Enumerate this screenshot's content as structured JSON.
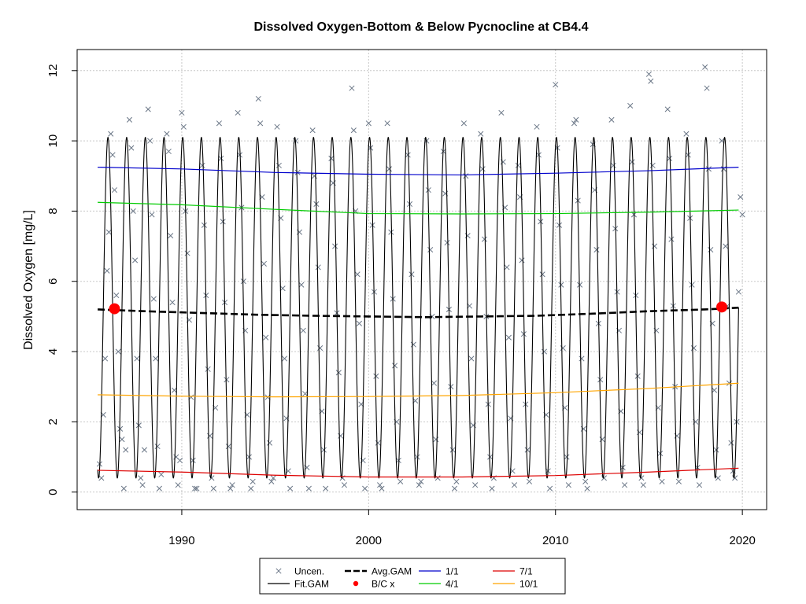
{
  "chart_data": {
    "type": "line",
    "title": "Dissolved Oxygen-Bottom & Below Pycnocline at CB4.4",
    "xlabel": "",
    "ylabel": "Dissolved Oxygen [mg/L]",
    "xlim": [
      1984.4,
      2021.3
    ],
    "ylim": [
      -0.5,
      12.6
    ],
    "x_ticks": [
      1990,
      2000,
      2010,
      2020
    ],
    "x_tick_labels": [
      "1990",
      "2000",
      "2010",
      "2020"
    ],
    "y_ticks": [
      0,
      2,
      4,
      6,
      8,
      10,
      12
    ],
    "y_tick_labels": [
      "0",
      "2",
      "4",
      "6",
      "8",
      "10",
      "12"
    ],
    "grid": true,
    "legend_position": "bottom-center",
    "legend": [
      {
        "label": "Uncen.",
        "symbol": "x",
        "color": "#6b7787"
      },
      {
        "label": "Fit.GAM",
        "symbol": "line",
        "color": "#000000"
      },
      {
        "label": "Avg.GAM",
        "symbol": "dashed",
        "color": "#000000"
      },
      {
        "label": "B/C x",
        "symbol": "dot",
        "color": "#ff0000"
      },
      {
        "label": "1/1",
        "symbol": "line",
        "color": "#0000cc"
      },
      {
        "label": "4/1",
        "symbol": "line",
        "color": "#00cc00"
      },
      {
        "label": "7/1",
        "symbol": "line",
        "color": "#dd0000"
      },
      {
        "label": "10/1",
        "symbol": "line",
        "color": "#ffa500"
      }
    ],
    "fit_gam": {
      "start_year": 1985.5,
      "end_year": 2019.8,
      "max_value": 10.1,
      "min_value": 0.4,
      "peak_season": 0.05,
      "color": "#000000"
    },
    "series": [
      {
        "name": "Avg.GAM",
        "color": "#000000",
        "style": "dashed",
        "x": [
          1985.5,
          1988,
          1991,
          1994,
          1997,
          2000,
          2003,
          2006,
          2009,
          2012,
          2015,
          2018,
          2019.8
        ],
        "y": [
          5.2,
          5.15,
          5.1,
          5.05,
          5.02,
          5.0,
          4.98,
          5.0,
          5.02,
          5.08,
          5.15,
          5.2,
          5.25
        ]
      },
      {
        "name": "1/1",
        "color": "#0000cc",
        "style": "solid",
        "x": [
          1985.5,
          1990,
          1995,
          2000,
          2005,
          2010,
          2015,
          2019.8
        ],
        "y": [
          9.25,
          9.2,
          9.1,
          9.05,
          9.03,
          9.08,
          9.15,
          9.25
        ]
      },
      {
        "name": "4/1",
        "color": "#00cc00",
        "style": "solid",
        "x": [
          1985.5,
          1990,
          1995,
          2000,
          2005,
          2010,
          2015,
          2019.8
        ],
        "y": [
          8.25,
          8.18,
          8.05,
          7.93,
          7.92,
          7.93,
          7.97,
          8.03
        ]
      },
      {
        "name": "7/1",
        "color": "#dd0000",
        "style": "solid",
        "x": [
          1985.5,
          1990,
          1995,
          2000,
          2005,
          2010,
          2015,
          2019.8
        ],
        "y": [
          0.62,
          0.57,
          0.48,
          0.43,
          0.43,
          0.47,
          0.57,
          0.68
        ]
      },
      {
        "name": "10/1",
        "color": "#ffa500",
        "style": "solid",
        "x": [
          1985.5,
          1990,
          1995,
          2000,
          2005,
          2010,
          2015,
          2019.8
        ],
        "y": [
          2.77,
          2.73,
          2.71,
          2.72,
          2.75,
          2.83,
          2.95,
          3.1
        ]
      }
    ],
    "bc_points": {
      "name": "B/C x",
      "color": "#ff0000",
      "x": [
        1986.4,
        2018.9
      ],
      "y": [
        5.22,
        5.27
      ]
    },
    "observations": {
      "name": "Uncen.",
      "color": "#6b7787",
      "points": [
        [
          1985.6,
          0.8
        ],
        [
          1985.7,
          0.4
        ],
        [
          1985.8,
          2.2
        ],
        [
          1985.9,
          3.8
        ],
        [
          1986.0,
          6.3
        ],
        [
          1986.1,
          7.4
        ],
        [
          1986.2,
          10.2
        ],
        [
          1986.3,
          9.6
        ],
        [
          1986.4,
          8.6
        ],
        [
          1986.5,
          5.6
        ],
        [
          1986.6,
          4.0
        ],
        [
          1986.7,
          1.8
        ],
        [
          1986.8,
          1.5
        ],
        [
          1986.9,
          0.1
        ],
        [
          1987.0,
          1.2
        ],
        [
          1987.2,
          10.6
        ],
        [
          1987.3,
          9.8
        ],
        [
          1987.4,
          8.0
        ],
        [
          1987.5,
          6.6
        ],
        [
          1987.6,
          3.8
        ],
        [
          1987.7,
          1.9
        ],
        [
          1987.8,
          0.4
        ],
        [
          1987.9,
          0.2
        ],
        [
          1988.0,
          1.2
        ],
        [
          1988.2,
          10.9
        ],
        [
          1988.3,
          10.0
        ],
        [
          1988.4,
          7.9
        ],
        [
          1988.5,
          5.5
        ],
        [
          1988.6,
          3.8
        ],
        [
          1988.7,
          1.3
        ],
        [
          1988.8,
          0.1
        ],
        [
          1988.9,
          0.5
        ],
        [
          1989.2,
          10.2
        ],
        [
          1989.3,
          9.7
        ],
        [
          1989.4,
          7.3
        ],
        [
          1989.5,
          5.4
        ],
        [
          1989.6,
          2.9
        ],
        [
          1989.7,
          1.0
        ],
        [
          1989.8,
          0.2
        ],
        [
          1989.9,
          0.9
        ],
        [
          1990.0,
          10.8
        ],
        [
          1990.1,
          10.4
        ],
        [
          1990.2,
          8.0
        ],
        [
          1990.3,
          6.8
        ],
        [
          1990.4,
          4.9
        ],
        [
          1990.5,
          2.7
        ],
        [
          1990.6,
          0.9
        ],
        [
          1990.7,
          0.1
        ],
        [
          1990.8,
          0.1
        ],
        [
          1991.1,
          9.3
        ],
        [
          1991.2,
          7.6
        ],
        [
          1991.3,
          5.6
        ],
        [
          1991.4,
          3.5
        ],
        [
          1991.5,
          1.6
        ],
        [
          1991.6,
          0.4
        ],
        [
          1991.7,
          0.1
        ],
        [
          1991.8,
          2.4
        ],
        [
          1992.0,
          10.5
        ],
        [
          1992.1,
          9.5
        ],
        [
          1992.2,
          7.7
        ],
        [
          1992.3,
          5.4
        ],
        [
          1992.4,
          3.2
        ],
        [
          1992.5,
          1.3
        ],
        [
          1992.6,
          0.1
        ],
        [
          1992.7,
          0.2
        ],
        [
          1993.0,
          10.8
        ],
        [
          1993.1,
          9.6
        ],
        [
          1993.2,
          8.1
        ],
        [
          1993.3,
          6.0
        ],
        [
          1993.4,
          4.6
        ],
        [
          1993.5,
          2.2
        ],
        [
          1993.6,
          1.0
        ],
        [
          1993.7,
          0.1
        ],
        [
          1993.8,
          0.3
        ],
        [
          1994.1,
          11.2
        ],
        [
          1994.2,
          10.5
        ],
        [
          1994.3,
          8.4
        ],
        [
          1994.4,
          6.5
        ],
        [
          1994.5,
          4.4
        ],
        [
          1994.6,
          2.7
        ],
        [
          1994.7,
          1.4
        ],
        [
          1994.8,
          0.3
        ],
        [
          1994.9,
          0.4
        ],
        [
          1995.1,
          10.4
        ],
        [
          1995.2,
          9.3
        ],
        [
          1995.3,
          7.8
        ],
        [
          1995.4,
          5.8
        ],
        [
          1995.5,
          3.8
        ],
        [
          1995.6,
          2.1
        ],
        [
          1995.7,
          0.6
        ],
        [
          1995.8,
          0.1
        ],
        [
          1996.1,
          10.0
        ],
        [
          1996.2,
          9.1
        ],
        [
          1996.3,
          7.4
        ],
        [
          1996.4,
          5.9
        ],
        [
          1996.5,
          4.6
        ],
        [
          1996.6,
          2.8
        ],
        [
          1996.7,
          0.7
        ],
        [
          1996.8,
          0.1
        ],
        [
          1997.0,
          10.3
        ],
        [
          1997.1,
          9.0
        ],
        [
          1997.2,
          8.2
        ],
        [
          1997.3,
          6.4
        ],
        [
          1997.4,
          4.1
        ],
        [
          1997.5,
          2.3
        ],
        [
          1997.6,
          1.2
        ],
        [
          1997.7,
          0.1
        ],
        [
          1998.0,
          9.5
        ],
        [
          1998.1,
          8.8
        ],
        [
          1998.2,
          7.0
        ],
        [
          1998.3,
          5.1
        ],
        [
          1998.4,
          3.4
        ],
        [
          1998.5,
          1.6
        ],
        [
          1998.6,
          0.4
        ],
        [
          1998.7,
          0.2
        ],
        [
          1999.1,
          11.5
        ],
        [
          1999.2,
          10.3
        ],
        [
          1999.3,
          8.0
        ],
        [
          1999.4,
          6.2
        ],
        [
          1999.5,
          4.8
        ],
        [
          1999.6,
          2.5
        ],
        [
          1999.7,
          0.9
        ],
        [
          1999.8,
          0.1
        ],
        [
          2000.0,
          10.5
        ],
        [
          2000.1,
          9.8
        ],
        [
          2000.2,
          7.6
        ],
        [
          2000.3,
          5.7
        ],
        [
          2000.4,
          3.3
        ],
        [
          2000.5,
          1.4
        ],
        [
          2000.6,
          0.2
        ],
        [
          2000.7,
          0.1
        ],
        [
          2001.0,
          10.5
        ],
        [
          2001.1,
          9.2
        ],
        [
          2001.2,
          7.4
        ],
        [
          2001.3,
          5.5
        ],
        [
          2001.4,
          3.6
        ],
        [
          2001.5,
          2.0
        ],
        [
          2001.6,
          0.9
        ],
        [
          2001.7,
          0.3
        ],
        [
          2002.1,
          9.6
        ],
        [
          2002.2,
          8.2
        ],
        [
          2002.3,
          6.2
        ],
        [
          2002.4,
          4.2
        ],
        [
          2002.5,
          2.6
        ],
        [
          2002.6,
          1.0
        ],
        [
          2002.7,
          0.2
        ],
        [
          2002.8,
          0.3
        ],
        [
          2003.1,
          10.0
        ],
        [
          2003.2,
          8.6
        ],
        [
          2003.3,
          6.9
        ],
        [
          2003.4,
          5.0
        ],
        [
          2003.5,
          3.1
        ],
        [
          2003.6,
          1.5
        ],
        [
          2003.7,
          0.4
        ],
        [
          2004.0,
          9.7
        ],
        [
          2004.1,
          8.5
        ],
        [
          2004.2,
          7.1
        ],
        [
          2004.3,
          5.2
        ],
        [
          2004.4,
          3.0
        ],
        [
          2004.5,
          1.2
        ],
        [
          2004.6,
          0.1
        ],
        [
          2004.7,
          0.3
        ],
        [
          2005.1,
          10.5
        ],
        [
          2005.2,
          9.0
        ],
        [
          2005.3,
          7.3
        ],
        [
          2005.4,
          5.3
        ],
        [
          2005.5,
          3.8
        ],
        [
          2005.6,
          1.9
        ],
        [
          2005.7,
          0.2
        ],
        [
          2006.0,
          10.2
        ],
        [
          2006.1,
          9.2
        ],
        [
          2006.2,
          7.2
        ],
        [
          2006.3,
          5.0
        ],
        [
          2006.4,
          2.5
        ],
        [
          2006.5,
          1.0
        ],
        [
          2006.6,
          0.1
        ],
        [
          2006.7,
          0.4
        ],
        [
          2007.1,
          10.8
        ],
        [
          2007.2,
          9.4
        ],
        [
          2007.3,
          8.1
        ],
        [
          2007.4,
          6.4
        ],
        [
          2007.5,
          4.4
        ],
        [
          2007.6,
          2.1
        ],
        [
          2007.7,
          0.6
        ],
        [
          2007.8,
          0.2
        ],
        [
          2008.0,
          9.3
        ],
        [
          2008.1,
          8.4
        ],
        [
          2008.2,
          6.6
        ],
        [
          2008.3,
          4.5
        ],
        [
          2008.4,
          2.5
        ],
        [
          2008.5,
          1.2
        ],
        [
          2008.6,
          0.3
        ],
        [
          2009.0,
          10.4
        ],
        [
          2009.1,
          9.6
        ],
        [
          2009.2,
          7.7
        ],
        [
          2009.3,
          6.2
        ],
        [
          2009.4,
          4.0
        ],
        [
          2009.5,
          2.2
        ],
        [
          2009.6,
          0.6
        ],
        [
          2009.7,
          0.1
        ],
        [
          2010.0,
          11.6
        ],
        [
          2010.1,
          9.8
        ],
        [
          2010.2,
          7.6
        ],
        [
          2010.3,
          5.9
        ],
        [
          2010.4,
          4.1
        ],
        [
          2010.5,
          2.4
        ],
        [
          2010.6,
          1.0
        ],
        [
          2010.7,
          0.2
        ],
        [
          2011.0,
          10.5
        ],
        [
          2011.1,
          10.6
        ],
        [
          2011.2,
          8.3
        ],
        [
          2011.3,
          5.9
        ],
        [
          2011.4,
          3.8
        ],
        [
          2011.5,
          1.8
        ],
        [
          2011.6,
          0.3
        ],
        [
          2011.7,
          0.1
        ],
        [
          2012.0,
          9.9
        ],
        [
          2012.1,
          8.6
        ],
        [
          2012.2,
          6.9
        ],
        [
          2012.3,
          4.8
        ],
        [
          2012.4,
          3.2
        ],
        [
          2012.5,
          1.5
        ],
        [
          2012.6,
          0.4
        ],
        [
          2013.0,
          10.6
        ],
        [
          2013.1,
          9.3
        ],
        [
          2013.2,
          7.5
        ],
        [
          2013.3,
          5.7
        ],
        [
          2013.4,
          4.6
        ],
        [
          2013.5,
          2.3
        ],
        [
          2013.6,
          0.7
        ],
        [
          2013.7,
          0.2
        ],
        [
          2014.0,
          11.0
        ],
        [
          2014.1,
          9.4
        ],
        [
          2014.2,
          7.9
        ],
        [
          2014.3,
          5.6
        ],
        [
          2014.4,
          3.3
        ],
        [
          2014.5,
          1.7
        ],
        [
          2014.6,
          0.4
        ],
        [
          2014.7,
          0.2
        ],
        [
          2015.0,
          11.9
        ],
        [
          2015.1,
          11.7
        ],
        [
          2015.2,
          9.3
        ],
        [
          2015.3,
          7.0
        ],
        [
          2015.4,
          4.6
        ],
        [
          2015.5,
          2.4
        ],
        [
          2015.6,
          1.1
        ],
        [
          2015.7,
          0.3
        ],
        [
          2016.0,
          10.9
        ],
        [
          2016.1,
          9.5
        ],
        [
          2016.2,
          7.2
        ],
        [
          2016.3,
          5.3
        ],
        [
          2016.4,
          3.0
        ],
        [
          2016.5,
          1.6
        ],
        [
          2016.6,
          0.3
        ],
        [
          2017.0,
          10.2
        ],
        [
          2017.1,
          9.6
        ],
        [
          2017.2,
          7.8
        ],
        [
          2017.3,
          5.9
        ],
        [
          2017.4,
          4.1
        ],
        [
          2017.5,
          2.0
        ],
        [
          2017.6,
          0.7
        ],
        [
          2017.7,
          0.2
        ],
        [
          2018.0,
          12.1
        ],
        [
          2018.1,
          11.5
        ],
        [
          2018.2,
          9.2
        ],
        [
          2018.3,
          6.9
        ],
        [
          2018.4,
          4.8
        ],
        [
          2018.5,
          2.9
        ],
        [
          2018.6,
          1.2
        ],
        [
          2018.7,
          0.4
        ],
        [
          2018.9,
          10.0
        ],
        [
          2019.0,
          9.2
        ],
        [
          2019.1,
          7.0
        ],
        [
          2019.2,
          5.3
        ],
        [
          2019.3,
          3.1
        ],
        [
          2019.4,
          1.4
        ],
        [
          2019.5,
          0.6
        ],
        [
          2019.6,
          0.4
        ],
        [
          2019.7,
          2.0
        ],
        [
          2019.8,
          5.7
        ],
        [
          2019.9,
          8.4
        ],
        [
          2020.0,
          7.9
        ]
      ]
    }
  }
}
